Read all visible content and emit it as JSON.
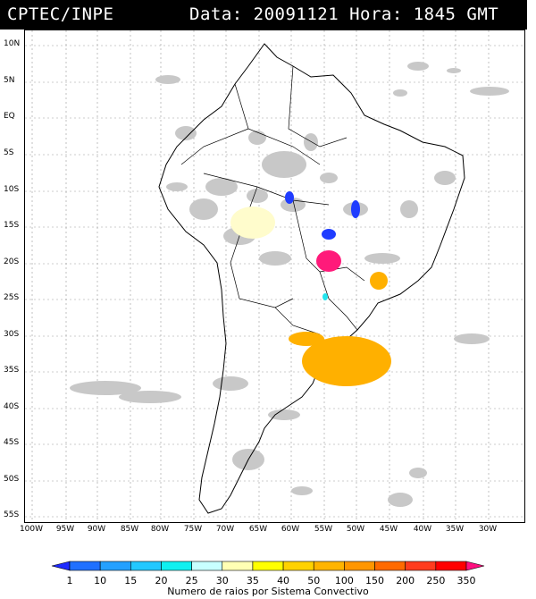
{
  "header": {
    "org": "CPTEC/INPE",
    "stamp": "Data: 20091121 Hora: 1845 GMT"
  },
  "map": {
    "lat_labels": [
      "10N",
      "5N",
      "EQ",
      "5S",
      "10S",
      "15S",
      "20S",
      "25S",
      "30S",
      "35S",
      "40S",
      "45S",
      "50S",
      "55S"
    ],
    "lon_labels": [
      "100W",
      "95W",
      "90W",
      "85W",
      "80W",
      "75W",
      "70W",
      "65W",
      "60W",
      "55W",
      "50W",
      "45W",
      "40W",
      "35W",
      "30W"
    ],
    "cloud_color": "#c8c8c8",
    "coast_color": "#000000",
    "grid_color": "#9a9a9a",
    "storm_cells": [
      {
        "name": "storm-cell-10S-58W",
        "color": "#1f3cff",
        "level": "1"
      },
      {
        "name": "storm-cell-14S-55W",
        "color": "#1f3cff",
        "level": "1"
      },
      {
        "name": "storm-cell-12S-50W",
        "color": "#1f3cff",
        "level": "1"
      },
      {
        "name": "storm-cell-14S-70W",
        "color": "#fffccc",
        "level": "30"
      },
      {
        "name": "storm-cell-20S-54W",
        "color": "#ff1a7a",
        "level": "350"
      },
      {
        "name": "storm-cell-23S-46W",
        "color": "#ffb000",
        "level": "100"
      },
      {
        "name": "storm-cell-25S-57W",
        "color": "#22e5ee",
        "level": "20"
      },
      {
        "name": "storm-cell-33S-54W",
        "color": "#ffb000",
        "level": "100"
      }
    ]
  },
  "colorbar": {
    "labels": [
      "1",
      "10",
      "15",
      "20",
      "25",
      "30",
      "35",
      "40",
      "50",
      "100",
      "150",
      "200",
      "250",
      "350"
    ],
    "colors": [
      "#1e2aff",
      "#2070ff",
      "#24a0ff",
      "#22c8ff",
      "#10f0f0",
      "#c8ffff",
      "#ffffb4",
      "#ffff00",
      "#ffd200",
      "#ffb400",
      "#ff9600",
      "#ff6a00",
      "#ff3c1e",
      "#ff0000",
      "#ff1080"
    ],
    "title": "Numero de raios por Sistema Convectivo"
  }
}
